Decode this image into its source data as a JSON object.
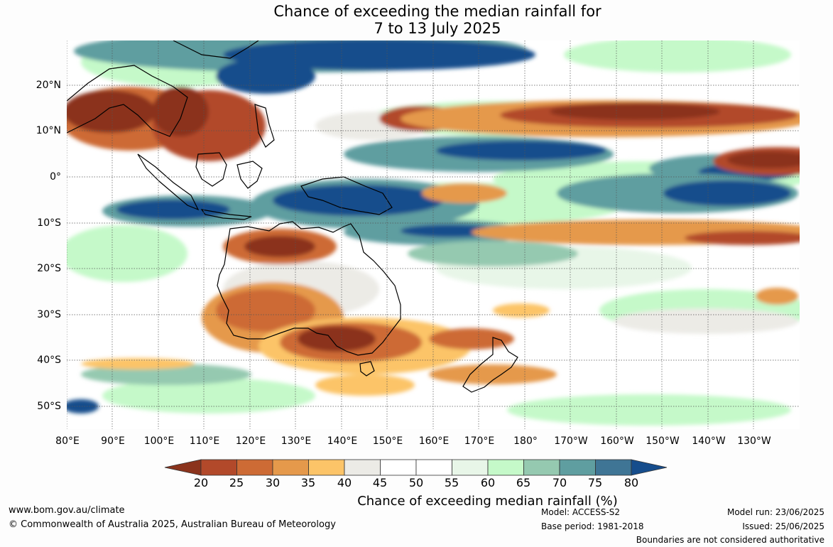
{
  "title": {
    "line1": "Chance of exceeding the median rainfall for",
    "line2": "7 to 13 July 2025"
  },
  "map": {
    "region": "Indo-Pacific: 80°E to 120°W, 30°N to 55°S",
    "latitude_labels": [
      "20°N",
      "10°N",
      "0°",
      "10°S",
      "20°S",
      "30°S",
      "40°S",
      "50°S"
    ],
    "longitude_labels": [
      "80°E",
      "90°E",
      "100°E",
      "110°E",
      "120°E",
      "130°E",
      "140°E",
      "150°E",
      "160°E",
      "170°E",
      "180°",
      "170°W",
      "160°W",
      "150°W",
      "140°W",
      "130°W"
    ],
    "gridlines": "dotted"
  },
  "colorbar": {
    "ticks": [
      "20",
      "25",
      "30",
      "35",
      "40",
      "45",
      "50",
      "55",
      "60",
      "65",
      "70",
      "75",
      "80"
    ],
    "colors": [
      "#8b331c",
      "#b2492a",
      "#cd6b35",
      "#e5994b",
      "#fcc468",
      "#ecebe6",
      "#ffffff",
      "#ffffff",
      "#e8f6e8",
      "#c5f9c9",
      "#95c9b0",
      "#5f9ea0",
      "#3f7595",
      "#164d8c"
    ],
    "label": "Chance of exceeding median rainfall (%)"
  },
  "footer": {
    "website": "www.bom.gov.au/climate",
    "copyright": "© Commonwealth of Australia 2025, Australian Bureau of Meteorology",
    "model": "Model: ACCESS-S2",
    "base_period": "Base period: 1981-2018",
    "model_run": "Model run: 23/06/2025",
    "issued": "Issued: 25/06/2025",
    "disclaimer": "Boundaries are not considered authoritative"
  }
}
